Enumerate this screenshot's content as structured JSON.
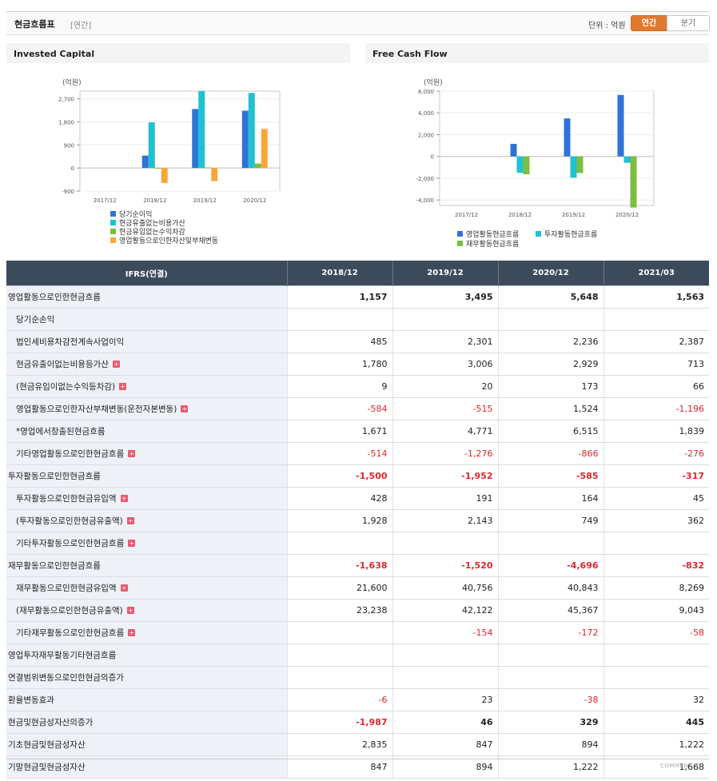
{
  "header": {
    "title": "현금흐름표",
    "subtitle": "[연간]",
    "unit_label": "단위 : 억원",
    "toggle_annual": "연간",
    "toggle_quarter": "분기",
    "accent_color": "#e07a2e"
  },
  "invested_capital": {
    "heading": "Invested Capital",
    "chart_data": {
      "type": "bar",
      "y_unit_label": "(억원)",
      "categories": [
        "2017/12",
        "2018/12",
        "2019/12",
        "2020/12"
      ],
      "y_ticks": [
        "2,700",
        "1,800",
        "900",
        "0",
        "-900"
      ],
      "ylim": [
        -900,
        3000
      ],
      "series": [
        {
          "name": "당기순이익",
          "color": "#2f73d6",
          "values": [
            0,
            485,
            2301,
            2236
          ]
        },
        {
          "name": "현금유출없는비용가산",
          "color": "#1fc1d2",
          "values": [
            0,
            1780,
            3006,
            2929
          ]
        },
        {
          "name": "현금유입없는수익차감",
          "color": "#7cbd3f",
          "values": [
            0,
            9,
            20,
            173
          ]
        },
        {
          "name": "영업활동으로인한자산및부채변동",
          "color": "#f7a73a",
          "values": [
            0,
            -584,
            -515,
            1524
          ]
        }
      ]
    }
  },
  "free_cash_flow": {
    "heading": "Free Cash Flow",
    "chart_data": {
      "type": "bar",
      "y_unit_label": "(억원)",
      "categories": [
        "2017/12",
        "2018/12",
        "2019/12",
        "2020/12"
      ],
      "y_ticks": [
        "6,000",
        "4,000",
        "2,000",
        "0",
        "-2,000",
        "-4,000"
      ],
      "ylim": [
        -4500,
        6000
      ],
      "series": [
        {
          "name": "영업활동현금흐름",
          "color": "#2f73d6",
          "values": [
            0,
            1157,
            3495,
            5648
          ]
        },
        {
          "name": "투자활동현금흐름",
          "color": "#1fc1d2",
          "values": [
            0,
            -1500,
            -1952,
            -585
          ]
        },
        {
          "name": "재무활동현금흐름",
          "color": "#7cbd3f",
          "values": [
            0,
            -1638,
            -1520,
            -4696
          ]
        }
      ]
    }
  },
  "table": {
    "header_label": "IFRS(연결)",
    "columns": [
      "2018/12",
      "2019/12",
      "2020/12",
      "2021/03"
    ],
    "rows": [
      {
        "label": "영업활동으로인한현금흐름",
        "values": [
          "1,157",
          "3,495",
          "5,648",
          "1,563"
        ],
        "bold": true,
        "main": true,
        "expand": false
      },
      {
        "label": "당기순손익",
        "values": [
          "",
          "",
          "",
          ""
        ],
        "bold": false,
        "main": false,
        "expand": false
      },
      {
        "label": "법인세비용차감전계속사업이익",
        "values": [
          "485",
          "2,301",
          "2,236",
          "2,387"
        ],
        "bold": false,
        "main": false,
        "expand": false
      },
      {
        "label": "현금유출이없는비용등가산",
        "values": [
          "1,780",
          "3,006",
          "2,929",
          "713"
        ],
        "bold": false,
        "main": false,
        "expand": true
      },
      {
        "label": "(현금유입이없는수익등차감)",
        "values": [
          "9",
          "20",
          "173",
          "66"
        ],
        "bold": false,
        "main": false,
        "expand": true
      },
      {
        "label": "영업활동으로인한자산부채변동(운전자본변동)",
        "values": [
          "-584",
          "-515",
          "1,524",
          "-1,196"
        ],
        "bold": false,
        "main": false,
        "expand": true
      },
      {
        "label": "*영업에서창출된현금흐름",
        "values": [
          "1,671",
          "4,771",
          "6,515",
          "1,839"
        ],
        "bold": false,
        "main": false,
        "expand": false
      },
      {
        "label": "기타영업활동으로인한현금흐름",
        "values": [
          "-514",
          "-1,276",
          "-866",
          "-276"
        ],
        "bold": false,
        "main": false,
        "expand": true
      },
      {
        "label": "투자활동으로인한현금흐름",
        "values": [
          "-1,500",
          "-1,952",
          "-585",
          "-317"
        ],
        "bold": true,
        "main": true,
        "expand": false
      },
      {
        "label": "투자활동으로인한현금유입액",
        "values": [
          "428",
          "191",
          "164",
          "45"
        ],
        "bold": false,
        "main": false,
        "expand": true
      },
      {
        "label": "(투자활동으로인한현금유출액)",
        "values": [
          "1,928",
          "2,143",
          "749",
          "362"
        ],
        "bold": false,
        "main": false,
        "expand": true
      },
      {
        "label": "기타투자활동으로인한현금흐름",
        "values": [
          "",
          "",
          "",
          ""
        ],
        "bold": false,
        "main": false,
        "expand": true
      },
      {
        "label": "재무활동으로인한현금흐름",
        "values": [
          "-1,638",
          "-1,520",
          "-4,696",
          "-832"
        ],
        "bold": true,
        "main": true,
        "expand": false
      },
      {
        "label": "재무활동으로인한현금유입액",
        "values": [
          "21,600",
          "40,756",
          "40,843",
          "8,269"
        ],
        "bold": false,
        "main": false,
        "expand": true
      },
      {
        "label": "(재무활동으로인한현금유출액)",
        "values": [
          "23,238",
          "42,122",
          "45,367",
          "9,043"
        ],
        "bold": false,
        "main": false,
        "expand": true
      },
      {
        "label": "기타재무활동으로인한현금흐름",
        "values": [
          "",
          "-154",
          "-172",
          "-58"
        ],
        "bold": false,
        "main": false,
        "expand": true
      },
      {
        "label": "영업투자재무활동기타현금흐름",
        "values": [
          "",
          "",
          "",
          ""
        ],
        "bold": false,
        "main": true,
        "expand": false
      },
      {
        "label": "연결범위변동으로인한현금의증가",
        "values": [
          "",
          "",
          "",
          ""
        ],
        "bold": false,
        "main": true,
        "expand": false
      },
      {
        "label": "환율변동효과",
        "values": [
          "-6",
          "23",
          "-38",
          "32"
        ],
        "bold": false,
        "main": true,
        "expand": false
      },
      {
        "label": "현금및현금성자산의증가",
        "values": [
          "-1,987",
          "46",
          "329",
          "445"
        ],
        "bold": true,
        "main": true,
        "expand": false
      },
      {
        "label": "기초현금및현금성자산",
        "values": [
          "2,835",
          "847",
          "894",
          "1,222"
        ],
        "bold": false,
        "main": true,
        "expand": false
      },
      {
        "label": "기말현금및현금성자산",
        "values": [
          "847",
          "894",
          "1,222",
          "1,668"
        ],
        "bold": false,
        "main": true,
        "expand": false
      }
    ]
  },
  "footer": {
    "comment_label": "COMMENT ▼"
  }
}
